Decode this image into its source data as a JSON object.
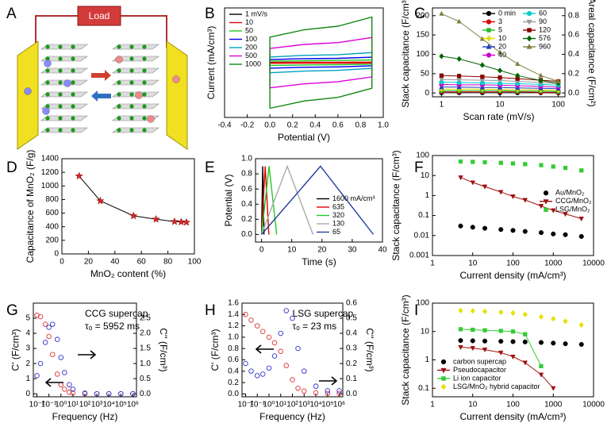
{
  "chart_data": [
    {
      "label": "A",
      "type": "diagram",
      "text": "Load"
    },
    {
      "label": "B",
      "type": "line",
      "xlabel": "Potential (V)",
      "ylabel": "Current (mA/cm³)",
      "x": [
        0,
        0,
        0.3,
        0.6,
        0.9,
        0.9,
        0.6,
        0.3,
        0
      ],
      "xlim": [
        -0.4,
        1.0
      ],
      "xticks": [
        -0.4,
        -0.2,
        {
          "value": 0,
          "label": "0.0"
        },
        0.2,
        0.4,
        0.6,
        0.8,
        {
          "value": 1,
          "label": "1.0"
        }
      ],
      "ylim": [
        -1500,
        1500
      ],
      "lines": true,
      "legend": "upper left",
      "series": [
        {
          "name": "1 mV/s",
          "color": "#000000",
          "values": [
            -2,
            1,
            1.5,
            1.6,
            2,
            -1,
            -1.5,
            -1.6,
            -2
          ]
        },
        {
          "name": "10",
          "color": "#e00000",
          "values": [
            -16,
            9,
            12,
            13,
            16,
            -9,
            -12,
            -14,
            -16
          ]
        },
        {
          "name": "50",
          "color": "#22cc22",
          "values": [
            -75,
            42,
            54,
            60,
            75,
            -42,
            -57,
            -63,
            -75
          ]
        },
        {
          "name": "100",
          "color": "#0000ee",
          "values": [
            -150,
            85,
            110,
            120,
            150,
            -85,
            -115,
            -125,
            -150
          ]
        },
        {
          "name": "200",
          "color": "#00a0c0",
          "values": [
            -275,
            155,
            200,
            220,
            275,
            -155,
            -210,
            -230,
            -275
          ]
        },
        {
          "name": "500",
          "color": "#dd00dd",
          "values": [
            -690,
            390,
            500,
            550,
            690,
            -390,
            -520,
            -580,
            -690
          ]
        },
        {
          "name": "1000",
          "color": "#118811",
          "values": [
            -1250,
            700,
            900,
            1000,
            1250,
            -700,
            -950,
            -1050,
            -1250
          ]
        }
      ]
    },
    {
      "label": "C",
      "type": "line",
      "xlabel": "Scan rate (mV/s)",
      "ylabel": "Stack capacitance (F/cm³)",
      "y2label": "Areal capacitance (F/cm²)",
      "x": [
        1,
        2,
        5,
        10,
        20,
        50,
        100
      ],
      "xlog": true,
      "xlim": [
        0.7,
        130
      ],
      "xticks": [
        1,
        10,
        100
      ],
      "ylim": [
        -10,
        220
      ],
      "yticks": [
        0,
        50,
        100,
        150,
        200
      ],
      "y2lim": [
        -0.04,
        0.88
      ],
      "y2ticks": [
        {
          "value": 0,
          "label": "0.0"
        },
        0.2,
        0.4,
        0.6,
        0.8
      ],
      "lines": true,
      "legend": "upper right",
      "legend_columns": 2,
      "series": [
        {
          "name": "0 min",
          "color": "#000000",
          "marker": "circle",
          "values": [
            0.5,
            0.5,
            0.5,
            0.4,
            0.4,
            0.4,
            0.3
          ]
        },
        {
          "name": "3",
          "color": "#dd0000",
          "marker": "circle",
          "values": [
            3,
            3,
            3,
            3,
            3,
            2,
            2
          ]
        },
        {
          "name": "5",
          "color": "#22bb22",
          "marker": "square",
          "values": [
            6,
            6,
            6,
            6,
            5,
            5,
            4
          ]
        },
        {
          "name": "10",
          "color": "#dddd00",
          "marker": "diamond",
          "values": [
            10,
            10,
            10,
            9,
            9,
            8,
            7
          ]
        },
        {
          "name": "20",
          "color": "#1f3fbf",
          "marker": "triangle",
          "values": [
            15,
            15,
            14,
            14,
            13,
            12,
            11
          ]
        },
        {
          "name": "40",
          "color": "#cc00cc",
          "marker": "circle",
          "values": [
            22,
            21,
            21,
            20,
            19,
            17,
            15
          ]
        },
        {
          "name": "60",
          "color": "#00cccc",
          "marker": "circle",
          "values": [
            28,
            27,
            26,
            25,
            24,
            22,
            20
          ]
        },
        {
          "name": "90",
          "color": "#999999",
          "marker": "triangle-down",
          "values": [
            35,
            34,
            33,
            32,
            30,
            27,
            24
          ]
        },
        {
          "name": "120",
          "color": "#8b0000",
          "marker": "square",
          "values": [
            45,
            44,
            42,
            40,
            37,
            33,
            30
          ]
        },
        {
          "name": "576",
          "color": "#006400",
          "marker": "diamond",
          "values": [
            95,
            88,
            72,
            58,
            45,
            32,
            25
          ]
        },
        {
          "name": "960",
          "color": "#808040",
          "marker": "triangle",
          "values": [
            205,
            185,
            140,
            105,
            75,
            45,
            30
          ]
        }
      ]
    },
    {
      "label": "D",
      "type": "line",
      "xlabel": "MnO₂ content (%)",
      "ylabel": "Capacitance of MnO₂ (F/g)",
      "x": [
        13,
        29,
        54,
        71,
        85,
        90,
        94
      ],
      "xlim": [
        0,
        100
      ],
      "xticks": [
        0,
        20,
        40,
        60,
        80,
        100
      ],
      "ylim": [
        0,
        1400
      ],
      "yticks": [
        0,
        200,
        400,
        600,
        800,
        1000,
        1200,
        1400
      ],
      "lines": true,
      "series": [
        {
          "color": "#d62728",
          "line_color": "#000000",
          "marker": "star",
          "values": [
            1145,
            780,
            560,
            510,
            475,
            470,
            465
          ]
        }
      ]
    },
    {
      "label": "E",
      "type": "line",
      "xlabel": "Time (s)",
      "ylabel": "Potential (V)",
      "xlim": [
        -2,
        40
      ],
      "xticks": [
        0,
        10,
        20,
        30,
        40
      ],
      "ylim": [
        -0.1,
        1.0
      ],
      "yticks": [
        {
          "value": 0,
          "label": "0.0"
        },
        0.2,
        0.4,
        0.6,
        0.8,
        {
          "value": 1,
          "label": "1.0"
        }
      ],
      "lines": true,
      "legend": "lower right",
      "series": [
        {
          "name": "1600 mA/cm³",
          "color": "#000000",
          "x": [
            0,
            0.4,
            0.8
          ],
          "values": [
            0,
            0.9,
            0
          ]
        },
        {
          "name": "635",
          "color": "#e00000",
          "x": [
            0,
            1.2,
            2.4
          ],
          "values": [
            0,
            0.9,
            0
          ]
        },
        {
          "name": "320",
          "color": "#22cc22",
          "x": [
            0,
            2.5,
            5
          ],
          "values": [
            0,
            0.9,
            0
          ]
        },
        {
          "name": "130",
          "color": "#aaaaaa",
          "x": [
            0,
            8.5,
            17
          ],
          "values": [
            0,
            0.9,
            0
          ]
        },
        {
          "name": "65",
          "color": "#1f3f9f",
          "x": [
            0,
            19.5,
            37
          ],
          "values": [
            0,
            0.9,
            0
          ]
        }
      ]
    },
    {
      "label": "F",
      "type": "scatter",
      "xlabel": "Current density (mA/cm³)",
      "ylabel": "Stack capacitance (F/cm³)",
      "x": [
        5,
        10,
        20,
        50,
        100,
        200,
        500,
        1000,
        2000,
        5000
      ],
      "xlog": true,
      "ylog": true,
      "xlim": [
        1,
        10000
      ],
      "xticks": [
        1,
        10,
        100,
        1000,
        10000
      ],
      "ylim": [
        0.001,
        100
      ],
      "yticks": [
        0.001,
        0.01,
        0.1,
        1,
        10,
        100
      ],
      "legend": "center right",
      "series": [
        {
          "name": "Au/MnO₂",
          "color": "#000000",
          "marker": "circle",
          "values": [
            0.03,
            0.026,
            0.023,
            0.02,
            0.018,
            0.016,
            0.014,
            0.012,
            0.011,
            0.009
          ]
        },
        {
          "name": "CCG/MnO₂",
          "color": "#a01010",
          "marker": "triangle-down",
          "line": true,
          "values": [
            8,
            4.5,
            2.8,
            1.5,
            0.9,
            0.6,
            0.3,
            0.18,
            0.12,
            0.07
          ]
        },
        {
          "name": "LSG/MnO₂",
          "color": "#33cc33",
          "marker": "square",
          "values": [
            50,
            48,
            46,
            43,
            40,
            37,
            33,
            28,
            24,
            18
          ]
        }
      ]
    },
    {
      "label": "G",
      "type": "scatter",
      "xlabel": "Frequency (Hz)",
      "ylabel": "C' (F/cm³)",
      "y2label": "C'' (F/cm³)",
      "annotations": [
        "CCG supercap",
        "τₒ = 5952 ms"
      ],
      "x": [
        0.01,
        0.02,
        0.05,
        0.1,
        0.2,
        0.5,
        1,
        2,
        5,
        10,
        100,
        1000,
        10000,
        100000,
        1000000
      ],
      "xlog": true,
      "xlim": [
        0.005,
        2000000
      ],
      "xticks": [
        {
          "value": 0.01,
          "label": "10⁻²"
        },
        {
          "value": 0.1,
          "label": "10⁻¹"
        },
        {
          "value": 1,
          "label": "10⁰"
        },
        {
          "value": 10,
          "label": "10¹"
        },
        {
          "value": 100,
          "label": "10²"
        },
        {
          "value": 1000,
          "label": "10³"
        },
        {
          "value": 10000,
          "label": "10⁴"
        },
        {
          "value": 100000,
          "label": "10⁵"
        },
        {
          "value": 1000000,
          "label": "10⁶"
        }
      ],
      "ylim": [
        -0.2,
        6
      ],
      "yticks": [
        0,
        1,
        2,
        3,
        4,
        5
      ],
      "y2lim": [
        -0.1,
        3
      ],
      "y2ticks": [
        {
          "value": 0,
          "label": "0.0"
        },
        0.5,
        {
          "value": 1,
          "label": "1.0"
        },
        1.5,
        {
          "value": 2,
          "label": "2.0"
        },
        2.5
      ],
      "series": [
        {
          "color": "#dd3333",
          "marker": "circle",
          "open": true,
          "values": [
            5.2,
            5.1,
            4.6,
            3.8,
            2.6,
            1.3,
            0.6,
            0.3,
            0.1,
            0.05,
            0,
            0,
            0,
            0,
            0
          ]
        },
        {
          "color": "#3333cc",
          "marker": "circle",
          "open": true,
          "axis": "y2",
          "values": [
            0.6,
            1.0,
            1.7,
            2.2,
            2.3,
            1.8,
            1.2,
            0.7,
            0.3,
            0.15,
            0.02,
            0,
            0,
            0,
            0
          ]
        }
      ]
    },
    {
      "label": "H",
      "type": "scatter",
      "xlabel": "Frequency (Hz)",
      "ylabel": "C' (F/cm³)",
      "y2label": "C'' (F/cm³)",
      "annotations": [
        "LSG supercap",
        "τₒ = 23 ms"
      ],
      "x": [
        0.01,
        0.03,
        0.1,
        0.3,
        1,
        3,
        10,
        30,
        100,
        300,
        1000,
        10000,
        100000,
        1000000
      ],
      "xlog": true,
      "xlim": [
        0.005,
        2000000
      ],
      "xticks": [
        {
          "value": 0.01,
          "label": "10⁻²"
        },
        {
          "value": 0.1,
          "label": "10⁻¹"
        },
        {
          "value": 1,
          "label": "10⁰"
        },
        {
          "value": 10,
          "label": "10¹"
        },
        {
          "value": 100,
          "label": "10²"
        },
        {
          "value": 1000,
          "label": "10³"
        },
        {
          "value": 10000,
          "label": "10⁴"
        },
        {
          "value": 100000,
          "label": "10⁵"
        },
        {
          "value": 1000000,
          "label": "10⁶"
        }
      ],
      "ylim": [
        -0.05,
        1.6
      ],
      "yticks": [
        {
          "value": 0,
          "label": "0.0"
        },
        0.2,
        0.4,
        0.6,
        0.8,
        {
          "value": 1,
          "label": "1.0"
        },
        1.2,
        1.4,
        1.6
      ],
      "y2lim": [
        -0.02,
        0.6
      ],
      "y2ticks": [
        {
          "value": 0,
          "label": "0.0"
        },
        0.1,
        0.2,
        0.3,
        0.4,
        0.5,
        0.6
      ],
      "series": [
        {
          "color": "#dd3333",
          "marker": "circle",
          "open": true,
          "values": [
            1.4,
            1.3,
            1.2,
            1.1,
            1.0,
            0.9,
            0.75,
            0.5,
            0.25,
            0.1,
            0.05,
            0.02,
            0.01,
            0.01
          ]
        },
        {
          "color": "#3333cc",
          "marker": "circle",
          "open": true,
          "axis": "y2",
          "values": [
            0.2,
            0.15,
            0.12,
            0.13,
            0.17,
            0.25,
            0.4,
            0.55,
            0.5,
            0.3,
            0.15,
            0.05,
            0.02,
            0.02
          ]
        }
      ]
    },
    {
      "label": "I",
      "type": "scatter",
      "xlabel": "Current density (mA/cm³)",
      "ylabel": "Stack capacitance (F/cm³)",
      "x": [
        5,
        10,
        20,
        50,
        100,
        200,
        500,
        1000,
        2000,
        5000
      ],
      "xlog": true,
      "ylog": true,
      "xlim": [
        1,
        10000
      ],
      "xticks": [
        1,
        10,
        100,
        1000,
        10000
      ],
      "ylim": [
        0.05,
        100
      ],
      "yticks": [
        0.1,
        1,
        10,
        100
      ],
      "legend": "lower left",
      "series": [
        {
          "name": "carbon supercap",
          "color": "#000000",
          "marker": "circle",
          "values": [
            4.8,
            4.7,
            4.6,
            4.5,
            4.4,
            4.3,
            4.1,
            3.9,
            3.7,
            3.5
          ]
        },
        {
          "name": "Pseudocapacitor",
          "color": "#a01010",
          "marker": "triangle-down",
          "line": true,
          "values": [
            2.8,
            2.6,
            2.3,
            1.8,
            1.3,
            0.8,
            0.3,
            0.1,
            null,
            null
          ]
        },
        {
          "name": "Li ion capacitor",
          "color": "#33cc33",
          "marker": "square",
          "line": true,
          "values": [
            12,
            11.5,
            11,
            10.5,
            10,
            8,
            0.6,
            null,
            null,
            null
          ]
        },
        {
          "name": "LSG/MnO₂ hybrid capacitor",
          "color": "#e8e000",
          "marker": "diamond",
          "values": [
            55,
            53,
            51,
            48,
            45,
            40,
            33,
            28,
            23,
            17
          ]
        }
      ]
    }
  ]
}
